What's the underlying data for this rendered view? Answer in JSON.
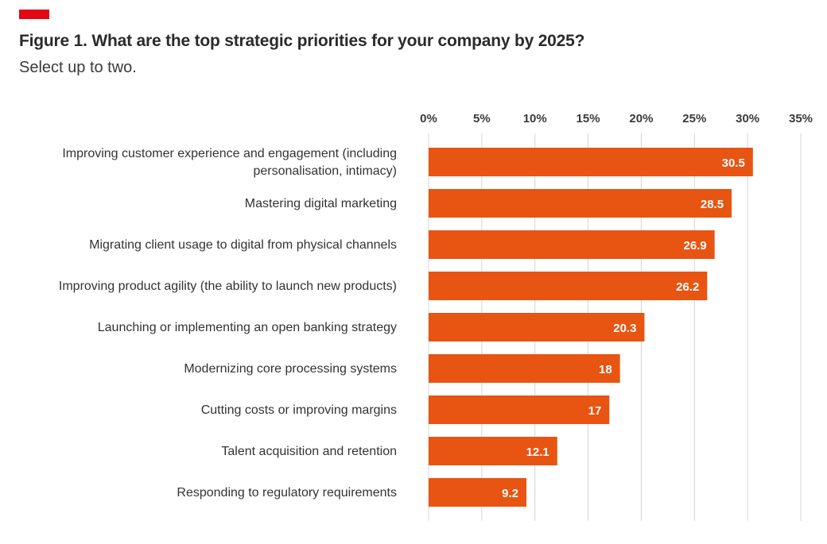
{
  "header": {
    "title": "Figure 1. What are the top strategic priorities for your company by 2025?",
    "subtitle": "Select up to two."
  },
  "colors": {
    "accent": "#e30613",
    "bar": "#e85412",
    "grid": "#d4d4d4",
    "text": "#333333"
  },
  "chart_data": {
    "type": "bar",
    "orientation": "horizontal",
    "title": "Figure 1. What are the top strategic priorities for your company by 2025?",
    "subtitle": "Select up to two.",
    "categories": [
      [
        "Improving customer experience and engagement (including",
        "personalisation, intimacy)"
      ],
      [
        "Mastering digital marketing"
      ],
      [
        "Migrating client usage to digital from physical channels"
      ],
      [
        "Improving product agility (the ability to launch new products)"
      ],
      [
        "Launching or implementing an open banking strategy"
      ],
      [
        "Modernizing core processing systems"
      ],
      [
        "Cutting costs or improving margins"
      ],
      [
        "Talent acquisition and retention"
      ],
      [
        "Responding to regulatory requirements"
      ]
    ],
    "values": [
      30.5,
      28.5,
      26.9,
      26.2,
      20.3,
      18,
      17,
      12.1,
      9.2
    ],
    "value_labels": [
      "30.5",
      "28.5",
      "26.9",
      "26.2",
      "20.3",
      "18",
      "17",
      "12.1",
      "9.2"
    ],
    "xlim": [
      0,
      35
    ],
    "xticks": [
      0,
      5,
      10,
      15,
      20,
      25,
      30,
      35
    ],
    "xtick_labels": [
      "0%",
      "5%",
      "10%",
      "15%",
      "20%",
      "25%",
      "30%",
      "35%"
    ],
    "axis_position": "top",
    "grid": true,
    "legend": "none"
  }
}
